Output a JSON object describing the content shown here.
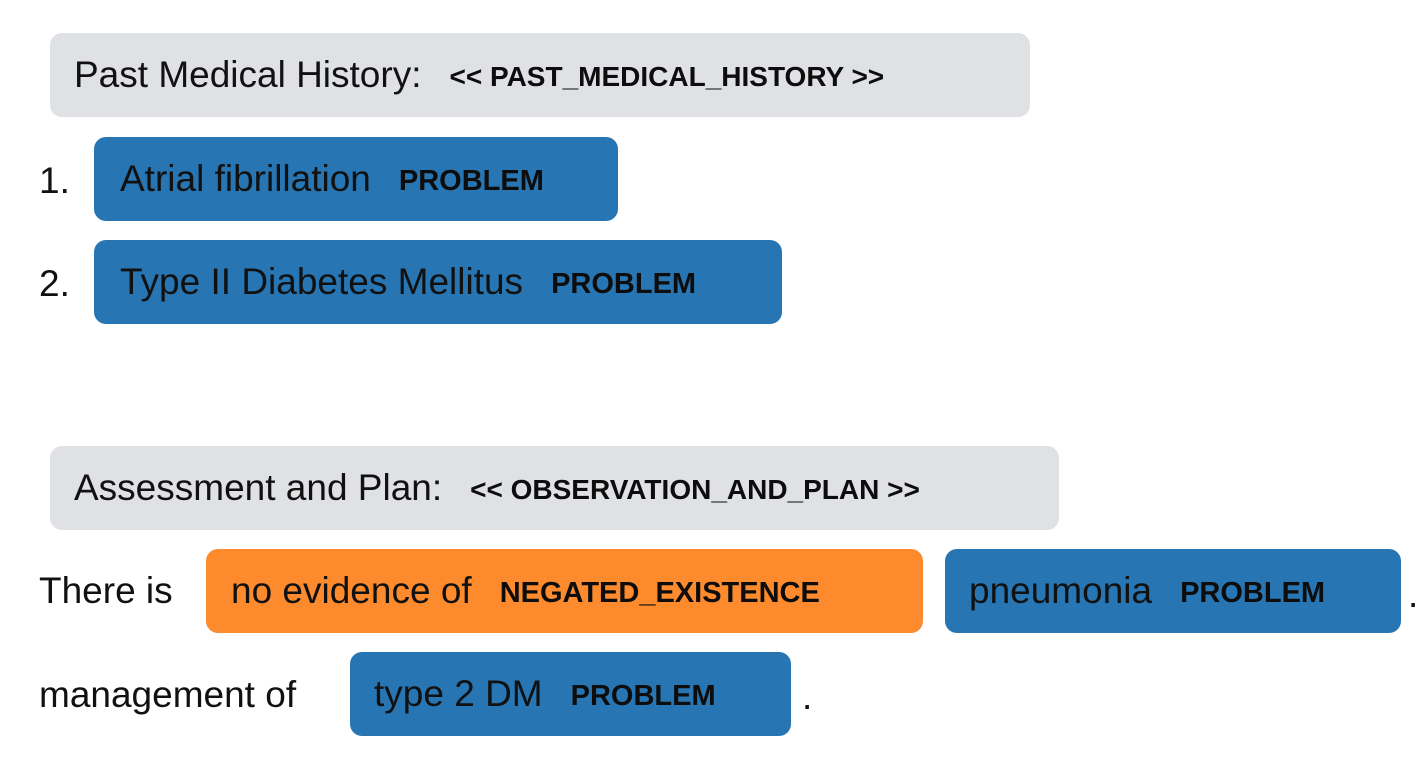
{
  "sections": [
    {
      "header": "Past Medical History:",
      "tag": "<< PAST_MEDICAL_HISTORY >>",
      "items": [
        {
          "number": "1.",
          "text": "Atrial fibrillation",
          "label": "PROBLEM"
        },
        {
          "number": "2.",
          "text": "Type II Diabetes Mellitus",
          "label": "PROBLEM"
        }
      ]
    },
    {
      "header": "Assessment and Plan:",
      "tag": "<< OBSERVATION_AND_PLAN >>",
      "line1": {
        "prefix": "There is",
        "entity1_text": "no evidence of",
        "entity1_label": "NEGATED_EXISTENCE",
        "entity2_text": "pneumonia",
        "entity2_label": "PROBLEM",
        "suffix": "."
      },
      "line2": {
        "prefix": "management of",
        "entity_text": "type 2 DM",
        "entity_label": "PROBLEM",
        "suffix": "."
      }
    }
  ],
  "colors": {
    "section_bg": "#e0e1e4",
    "problem": "#2775b2",
    "negated_existence": "#fd8a2d"
  }
}
